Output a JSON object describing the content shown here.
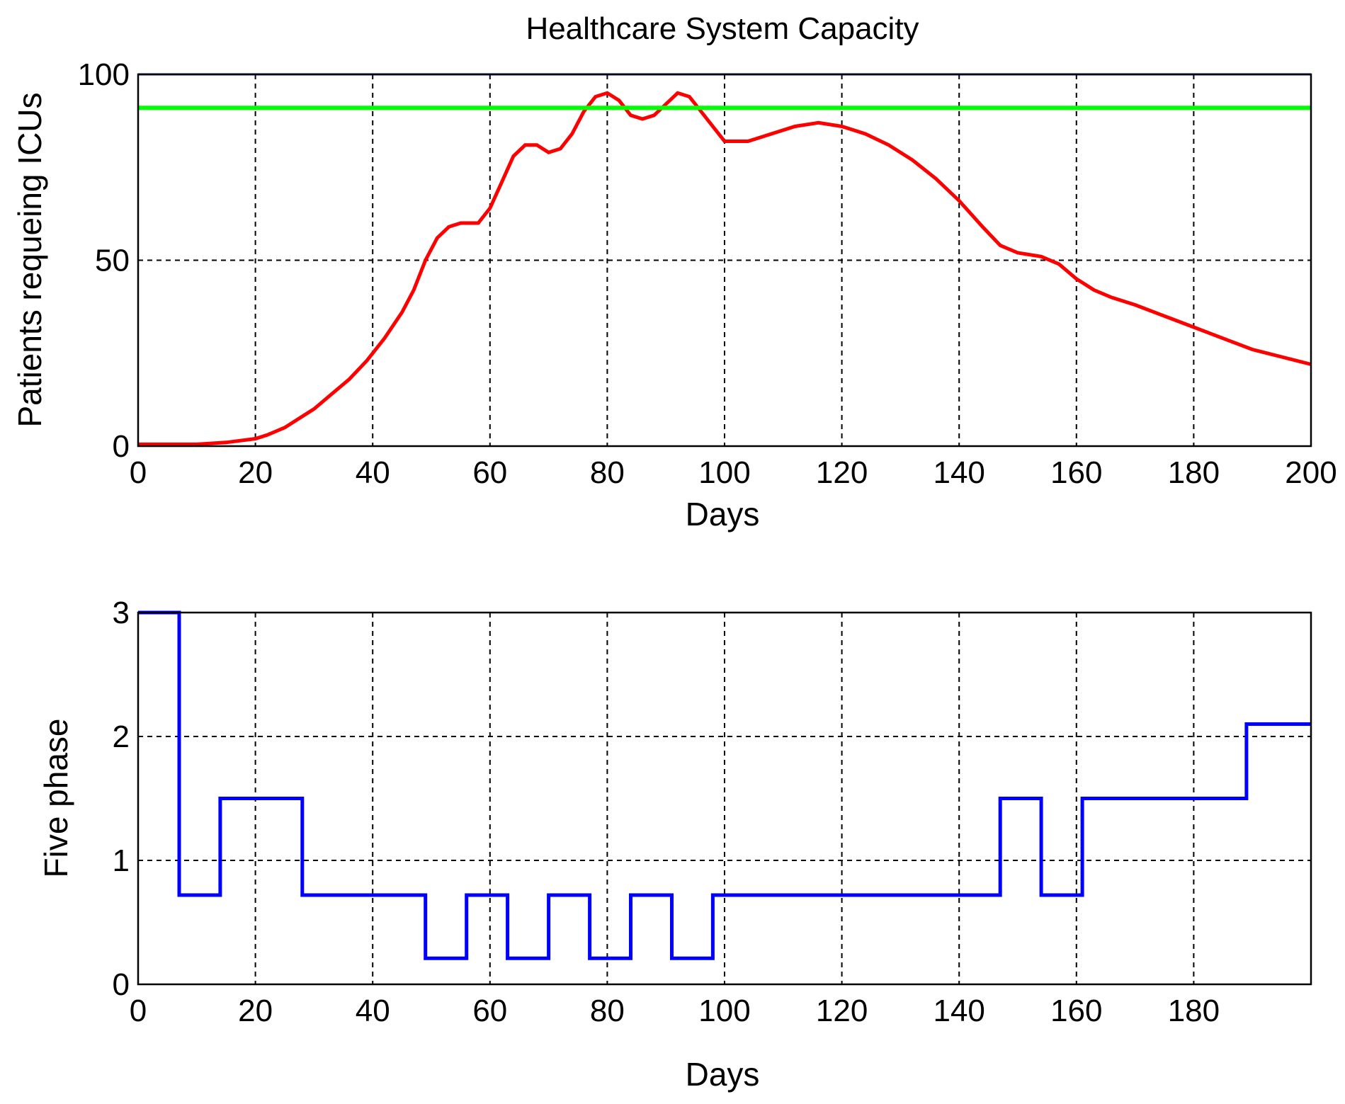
{
  "chart_data": [
    {
      "type": "line",
      "title": "Healthcare System Capacity",
      "xlabel": "Days",
      "ylabel": "Patients requeing ICUs",
      "xlim": [
        0,
        200
      ],
      "ylim": [
        0,
        100
      ],
      "x_ticks": [
        "0",
        "20",
        "40",
        "60",
        "80",
        "100",
        "120",
        "140",
        "160",
        "180",
        "200"
      ],
      "y_ticks": [
        "0",
        "50",
        "100"
      ],
      "grid": true,
      "series": [
        {
          "color": "#ff0000",
          "points": [
            [
              0,
              0.5
            ],
            [
              5,
              0.5
            ],
            [
              10,
              0.5
            ],
            [
              15,
              1
            ],
            [
              20,
              2
            ],
            [
              22,
              3
            ],
            [
              25,
              5
            ],
            [
              28,
              8
            ],
            [
              30,
              10
            ],
            [
              33,
              14
            ],
            [
              36,
              18
            ],
            [
              39,
              23
            ],
            [
              42,
              29
            ],
            [
              45,
              36
            ],
            [
              47,
              42
            ],
            [
              49,
              50
            ],
            [
              51,
              56
            ],
            [
              53,
              59
            ],
            [
              55,
              60
            ],
            [
              58,
              60
            ],
            [
              60,
              64
            ],
            [
              62,
              71
            ],
            [
              64,
              78
            ],
            [
              66,
              81
            ],
            [
              68,
              81
            ],
            [
              70,
              79
            ],
            [
              72,
              80
            ],
            [
              74,
              84
            ],
            [
              76,
              90
            ],
            [
              78,
              94
            ],
            [
              80,
              95
            ],
            [
              82,
              93
            ],
            [
              84,
              89
            ],
            [
              86,
              88
            ],
            [
              88,
              89
            ],
            [
              90,
              92
            ],
            [
              92,
              95
            ],
            [
              94,
              94
            ],
            [
              96,
              90
            ],
            [
              98,
              86
            ],
            [
              100,
              82
            ],
            [
              104,
              82
            ],
            [
              108,
              84
            ],
            [
              112,
              86
            ],
            [
              116,
              87
            ],
            [
              120,
              86
            ],
            [
              124,
              84
            ],
            [
              128,
              81
            ],
            [
              132,
              77
            ],
            [
              136,
              72
            ],
            [
              140,
              66
            ],
            [
              144,
              59
            ],
            [
              147,
              54
            ],
            [
              150,
              52
            ],
            [
              154,
              51
            ],
            [
              157,
              49
            ],
            [
              160,
              45
            ],
            [
              163,
              42
            ],
            [
              166,
              40
            ],
            [
              170,
              38
            ],
            [
              175,
              35
            ],
            [
              180,
              32
            ],
            [
              185,
              29
            ],
            [
              190,
              26
            ],
            [
              195,
              24
            ],
            [
              200,
              22
            ]
          ]
        },
        {
          "color": "#00ff00",
          "points": [
            [
              0,
              91
            ],
            [
              200,
              91
            ]
          ]
        }
      ]
    },
    {
      "type": "line",
      "title": "",
      "xlabel": "Days",
      "ylabel": "Five phase",
      "xlim": [
        0,
        200
      ],
      "ylim": [
        0,
        3
      ],
      "x_ticks": [
        "0",
        "20",
        "40",
        "60",
        "80",
        "100",
        "120",
        "140",
        "160",
        "180"
      ],
      "y_ticks": [
        "0",
        "1",
        "2",
        "3"
      ],
      "grid": true,
      "series": [
        {
          "color": "#0000ff",
          "step": true,
          "points": [
            [
              0,
              3
            ],
            [
              7,
              0.72
            ],
            [
              14,
              1.5
            ],
            [
              28,
              0.72
            ],
            [
              49,
              0.21
            ],
            [
              56,
              0.72
            ],
            [
              63,
              0.21
            ],
            [
              70,
              0.72
            ],
            [
              77,
              0.21
            ],
            [
              84,
              0.72
            ],
            [
              91,
              0.21
            ],
            [
              98,
              0.72
            ],
            [
              147,
              1.5
            ],
            [
              154,
              0.72
            ],
            [
              161,
              1.5
            ],
            [
              189,
              2.1
            ],
            [
              200,
              2.1
            ]
          ]
        }
      ]
    }
  ]
}
